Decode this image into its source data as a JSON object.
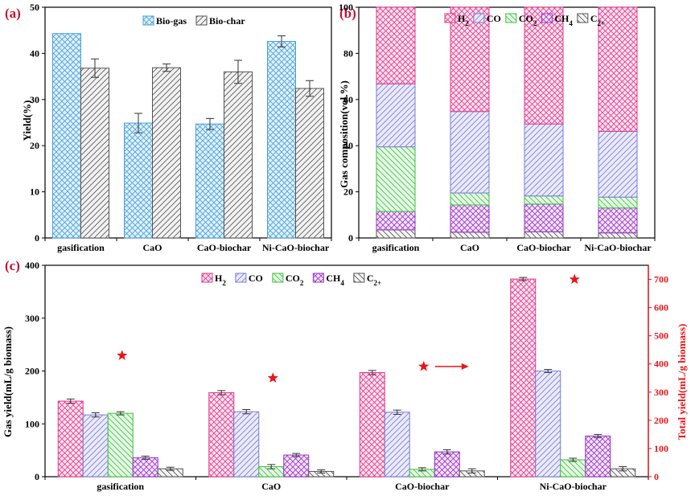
{
  "colors": {
    "h2": "#e2388a",
    "co": "#7b7bd8",
    "co2": "#3fc23f",
    "ch4": "#9a2fc6",
    "c2": "#555555",
    "biogas": "#4a9fd8",
    "biochar": "#555555",
    "biogas_fill": "#dff1fb",
    "h2_fill": "#fbe3ef",
    "co_fill": "#eaeafb",
    "co2_fill": "#e6f7e6",
    "ch4_fill": "#f3e6fa",
    "c2_fill": "#f5f5f5",
    "biochar_fill": "#f2f2f2",
    "total_axis": "#e8151b",
    "star": "#e8151b"
  },
  "chart_data": [
    {
      "panel_label": "(a)",
      "type": "bar",
      "categories": [
        "gasification",
        "CaO",
        "CaO-biochar",
        "Ni-CaO-biochar"
      ],
      "series": [
        {
          "name": "Bio-gas",
          "values": [
            44.3,
            24.9,
            24.7,
            42.6
          ],
          "errors": [
            0,
            2.1,
            1.2,
            1.2
          ]
        },
        {
          "name": "Bio-char",
          "values": [
            36.8,
            36.9,
            36.0,
            32.4
          ],
          "errors": [
            2.0,
            0.8,
            2.5,
            1.7
          ]
        }
      ],
      "xlabel": "",
      "ylabel": "Yield(%)",
      "ylim": [
        0,
        50
      ],
      "yticks": [
        0,
        10,
        20,
        30,
        40,
        50
      ],
      "legend": "top-center"
    },
    {
      "panel_label": "(b)",
      "type": "bar",
      "stacked": true,
      "categories": [
        "gasification",
        "CaO",
        "CaO-biochar",
        "Ni-CaO-biochar"
      ],
      "series": [
        {
          "name": "C2+",
          "values": [
            3.5,
            2.5,
            2.7,
            2.2
          ]
        },
        {
          "name": "CH4",
          "values": [
            8.0,
            11.8,
            12.0,
            10.8
          ]
        },
        {
          "name": "CO2",
          "values": [
            28.0,
            5.2,
            3.5,
            4.7
          ]
        },
        {
          "name": "CO",
          "values": [
            27.3,
            35.3,
            31.2,
            28.5
          ]
        },
        {
          "name": "H2",
          "values": [
            33.2,
            45.2,
            50.6,
            53.8
          ]
        }
      ],
      "legend_order": [
        "H2",
        "CO",
        "CO2",
        "CH4",
        "C2+"
      ],
      "xlabel": "",
      "ylabel": "Gas composition(vol.%)",
      "ylim": [
        0,
        100
      ],
      "yticks": [
        0,
        20,
        40,
        60,
        80,
        100
      ],
      "legend": "top"
    },
    {
      "panel_label": "(c)",
      "type": "bar",
      "categories": [
        "gasification",
        "CaO",
        "CaO-biochar",
        "Ni-CaO-biochar"
      ],
      "series": [
        {
          "name": "H2",
          "values": [
            143,
            159,
            197,
            374
          ],
          "errors": [
            4,
            4,
            4,
            3
          ]
        },
        {
          "name": "CO",
          "values": [
            117,
            123,
            122,
            200
          ],
          "errors": [
            4,
            4,
            4,
            3
          ]
        },
        {
          "name": "CO2",
          "values": [
            120,
            19,
            14,
            32
          ],
          "errors": [
            3,
            4,
            3,
            3
          ]
        },
        {
          "name": "CH4",
          "values": [
            36,
            41,
            47,
            77
          ],
          "errors": [
            3,
            3,
            4,
            3
          ]
        },
        {
          "name": "C2+",
          "values": [
            15,
            10,
            11,
            15
          ],
          "errors": [
            3,
            3,
            4,
            4
          ]
        }
      ],
      "total_yield": {
        "values": [
          430,
          350,
          391,
          700
        ]
      },
      "xlabel": "",
      "ylabel": "Gas yield(mL/g biomass)",
      "ylabel_right": "Total yield(mL/g biomass)",
      "ylim": [
        0,
        400
      ],
      "yticks": [
        0,
        100,
        200,
        300,
        400
      ],
      "ylim_right": [
        0,
        750
      ],
      "yticks_right": [
        0,
        100,
        200,
        300,
        400,
        500,
        600,
        700
      ],
      "legend": "top-center"
    }
  ]
}
